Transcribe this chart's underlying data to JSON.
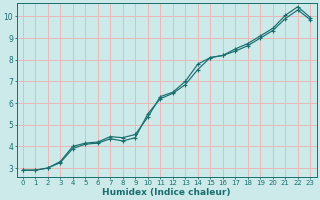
{
  "xlabel": "Humidex (Indice chaleur)",
  "ylabel": "",
  "background_color": "#cdeaea",
  "grid_color": "#e8b8b8",
  "line_color": "#1a6e6e",
  "xlim": [
    -0.5,
    23.5
  ],
  "ylim": [
    2.6,
    10.6
  ],
  "xticks": [
    0,
    1,
    2,
    3,
    4,
    5,
    6,
    7,
    8,
    9,
    10,
    11,
    12,
    13,
    14,
    15,
    16,
    17,
    18,
    19,
    20,
    21,
    22,
    23
  ],
  "yticks": [
    3,
    4,
    5,
    6,
    7,
    8,
    9,
    10
  ],
  "line1_x": [
    0,
    1,
    2,
    3,
    4,
    5,
    6,
    7,
    8,
    9,
    10,
    11,
    12,
    13,
    14,
    15,
    16,
    17,
    18,
    19,
    20,
    21,
    22,
    23
  ],
  "line1_y": [
    2.9,
    2.9,
    3.0,
    3.3,
    4.0,
    4.15,
    4.2,
    4.45,
    4.4,
    4.55,
    5.35,
    6.3,
    6.5,
    7.0,
    7.8,
    8.1,
    8.2,
    8.5,
    8.75,
    9.1,
    9.45,
    10.05,
    10.45,
    9.95
  ],
  "line2_x": [
    0,
    1,
    2,
    3,
    4,
    5,
    6,
    7,
    8,
    9,
    10,
    11,
    12,
    13,
    14,
    15,
    16,
    17,
    18,
    19,
    20,
    21,
    22,
    23
  ],
  "line2_y": [
    2.9,
    2.9,
    3.0,
    3.25,
    3.9,
    4.1,
    4.15,
    4.35,
    4.25,
    4.4,
    5.5,
    6.2,
    6.45,
    6.85,
    7.55,
    8.1,
    8.2,
    8.4,
    8.65,
    9.0,
    9.35,
    9.9,
    10.3,
    9.85
  ],
  "xlabel_fontsize": 6.5,
  "tick_fontsize": 5.0,
  "line_width": 0.85,
  "marker_size": 2.8
}
